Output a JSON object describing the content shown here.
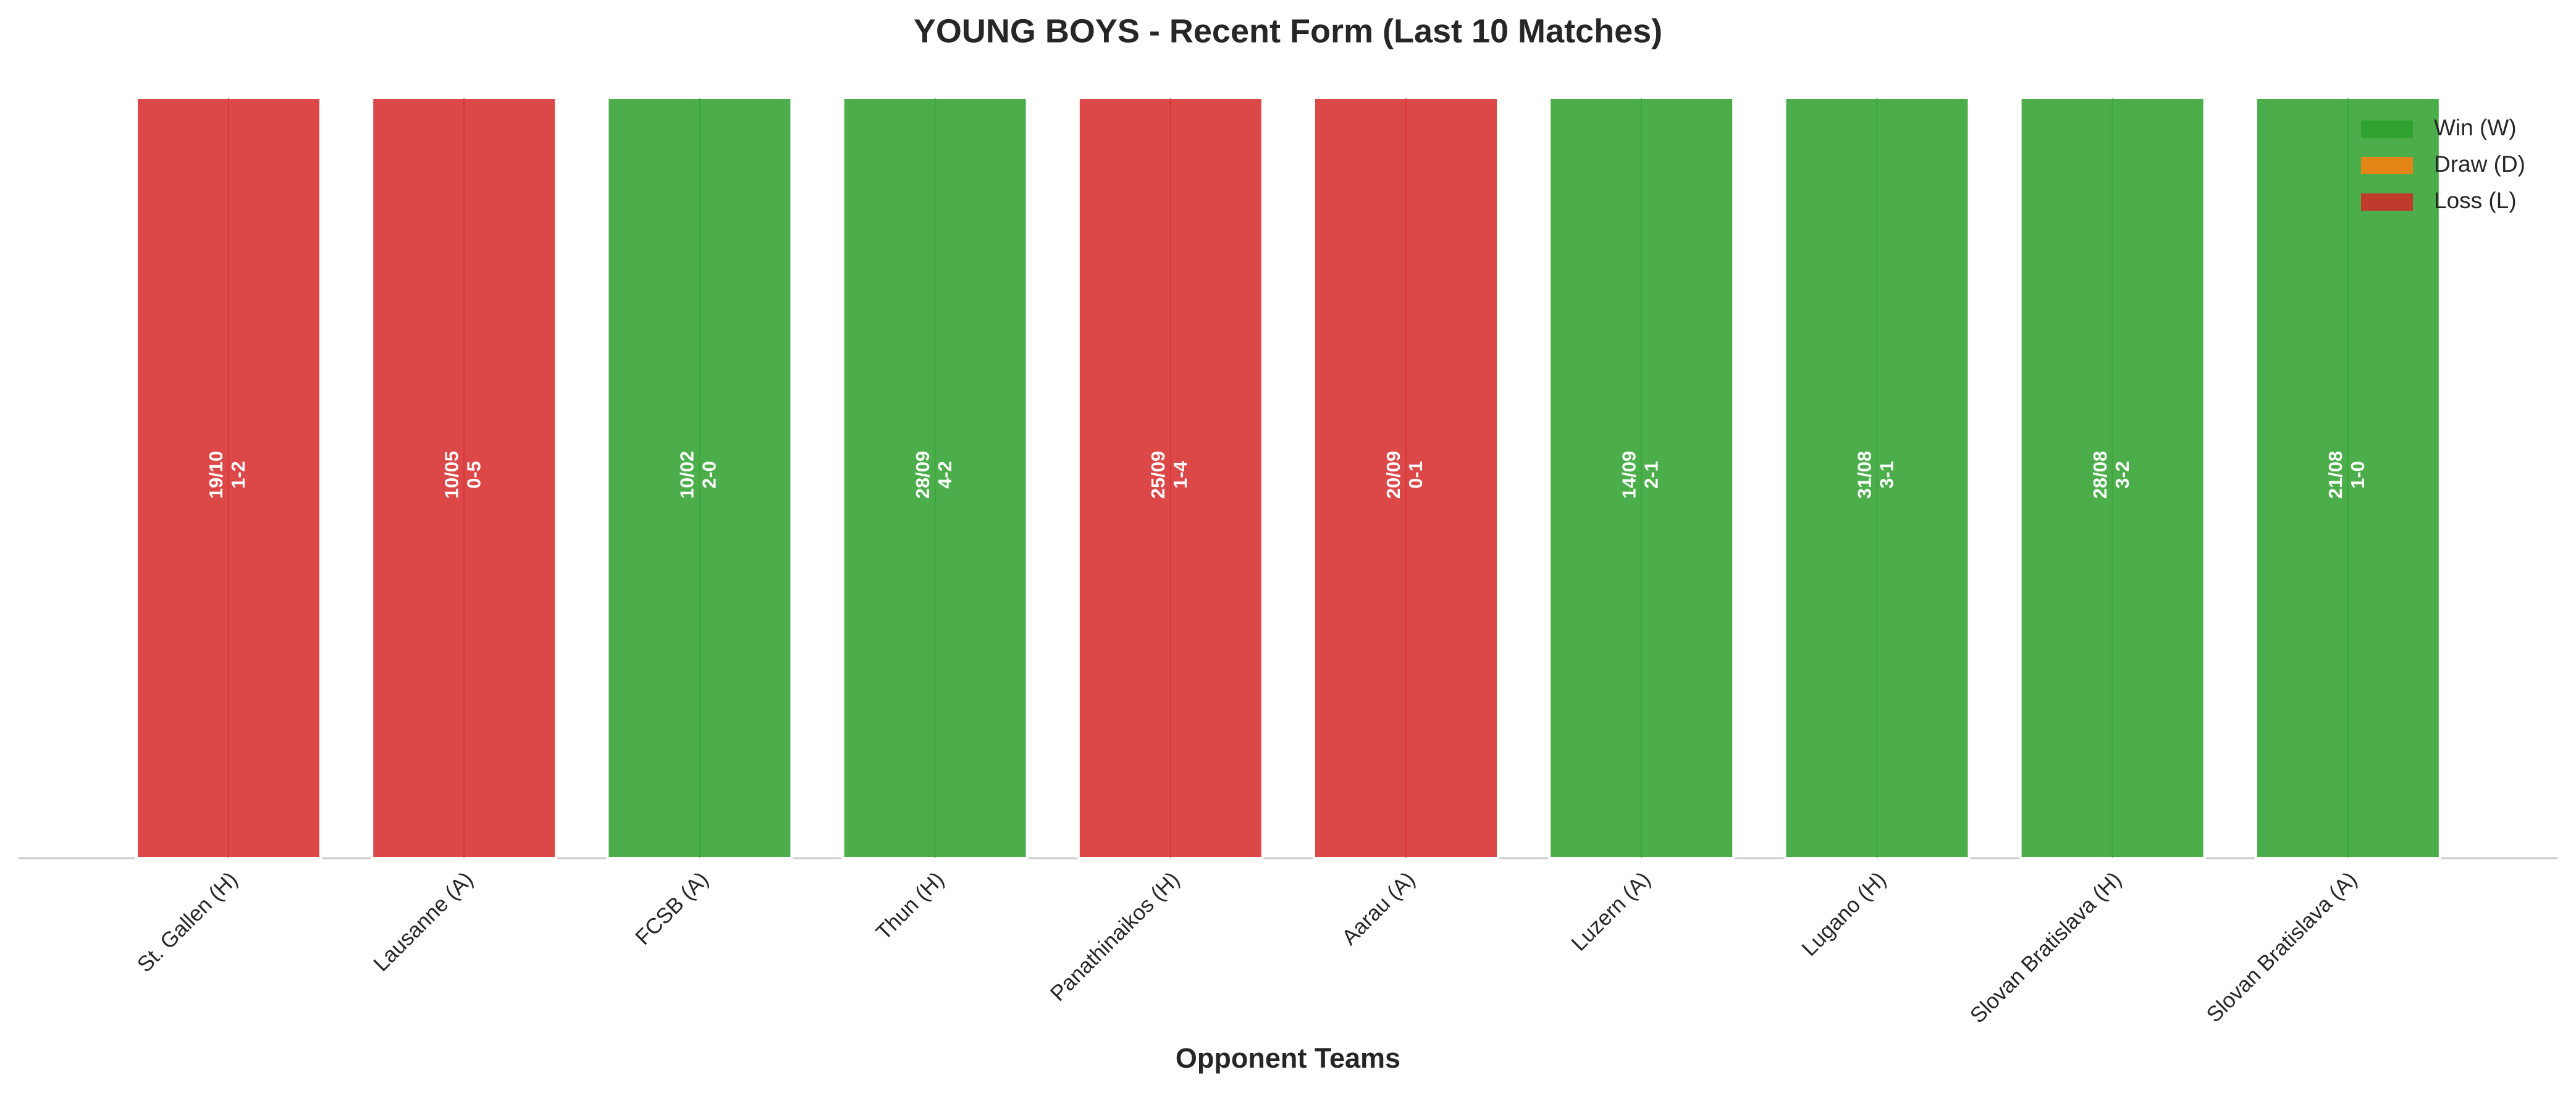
{
  "chart_data": {
    "type": "bar",
    "title": "YOUNG BOYS - Recent Form (Last 10 Matches)",
    "x_label": "Opponent Teams",
    "categories": [
      "St. Gallen (H)",
      "Lausanne (A)",
      "FCSB (A)",
      "Thun (H)",
      "Panathinaikos (H)",
      "Aarau (A)",
      "Luzern (A)",
      "Lugano (H)",
      "Slovan Bratislava (H)",
      "Slovan Bratislava (A)"
    ],
    "values": [
      1,
      1,
      1,
      1,
      1,
      1,
      1,
      1,
      1,
      1
    ],
    "dates": [
      "19/10",
      "10/05",
      "10/02",
      "28/09",
      "25/09",
      "20/09",
      "14/09",
      "31/08",
      "28/08",
      "21/08"
    ],
    "scores": [
      "1-2",
      "0-5",
      "2-0",
      "4-2",
      "1-4",
      "0-1",
      "2-1",
      "3-1",
      "3-2",
      "1-0"
    ],
    "colors": [
      "#d62728",
      "#d62728",
      "#2ca02c",
      "#2ca02c",
      "#d62728",
      "#d62728",
      "#2ca02c",
      "#2ca02c",
      "#2ca02c",
      "#2ca02c"
    ],
    "ylim": [
      0,
      1
    ],
    "legend_position": "upper right",
    "legend": [
      {
        "name": "Win (W)",
        "color": "#2ca02c"
      },
      {
        "name": "Draw (D)",
        "color": "#ff7f0e"
      },
      {
        "name": "Loss (L)",
        "color": "#d62728"
      }
    ]
  }
}
